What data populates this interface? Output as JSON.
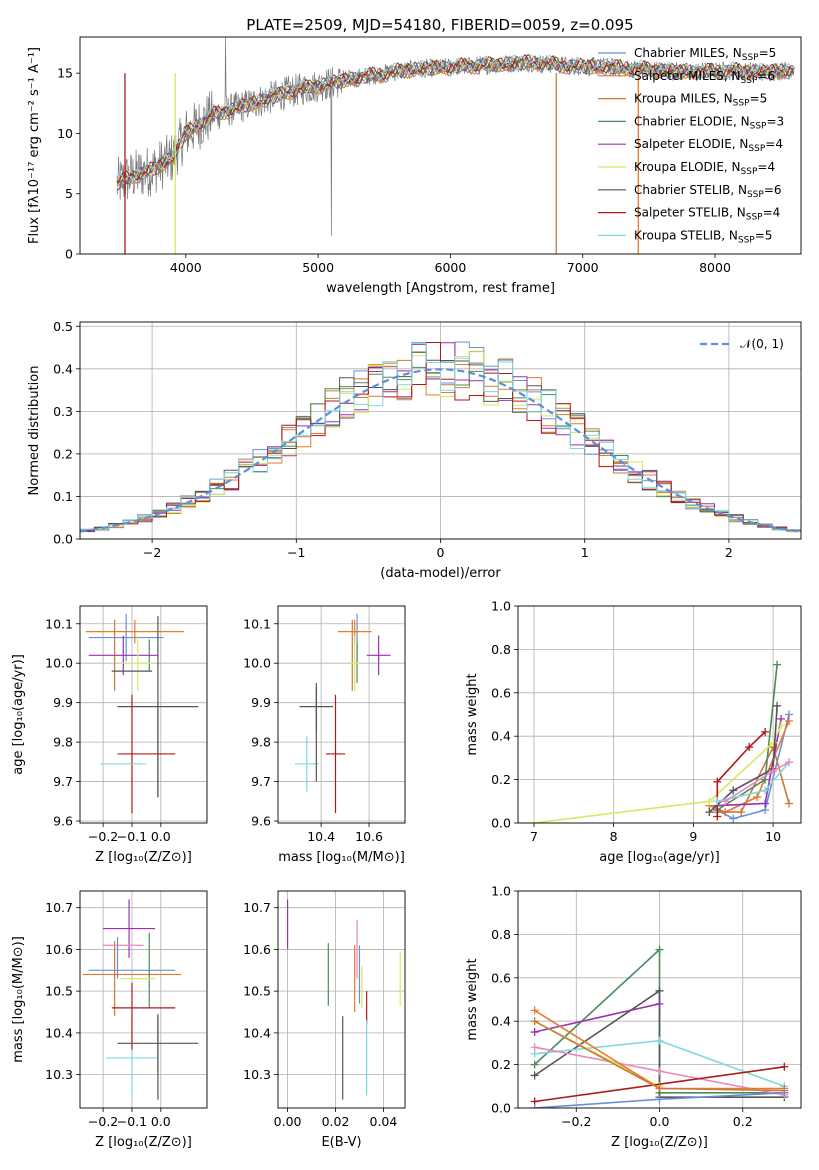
{
  "figure": {
    "title": "PLATE=2509, MJD=54180, FIBERID=0059, z=0.095"
  },
  "colors": {
    "Chabrier MILES": "#6a8fd8",
    "Salpeter MILES": "#e87a2a",
    "Kroupa MILES": "#c97a3a",
    "Chabrier ELODIE": "#4e8a5a",
    "Salpeter ELODIE": "#9b30b0",
    "Kroupa ELODIE": "#d8e860",
    "Chabrier STELIB": "#555555",
    "Salpeter STELIB": "#b01818",
    "Kroupa STELIB": "#80d8e0",
    "kroupa_elodie_line": "#c8dc50",
    "pink": "#e888c0",
    "data": "#777777"
  },
  "chart_data": [
    {
      "id": "spectrum",
      "type": "line",
      "xlabel": "wavelength [Angstrom, rest frame]",
      "ylabel": "Flux [fλ10⁻¹⁷ erg cm⁻² s⁻¹ A⁻¹]",
      "xlim": [
        3200,
        8650
      ],
      "ylim": [
        0,
        18
      ],
      "xticks": [
        "4000",
        "5000",
        "6000",
        "7000",
        "8000"
      ],
      "yticks": [
        "0",
        "5",
        "10",
        "15"
      ],
      "grid": false,
      "legend": "upper right",
      "continuum": {
        "x": [
          3480,
          3600,
          3750,
          3900,
          4000,
          4200,
          4500,
          4800,
          5100,
          5400,
          5700,
          6000,
          6300,
          6600,
          6900,
          7200,
          7500,
          7800,
          8100,
          8400,
          8600
        ],
        "y": [
          5.8,
          6.5,
          7.0,
          8.0,
          10.0,
          11.5,
          12.5,
          13.5,
          14.2,
          14.8,
          15.3,
          15.5,
          15.7,
          15.9,
          15.6,
          15.5,
          15.3,
          15.1,
          15.2,
          15.1,
          15.3
        ]
      },
      "series": [
        {
          "name": "Chabrier MILES",
          "label": "Chabrier MILES, N",
          "sub": "SSP",
          "n": "=5"
        },
        {
          "name": "Salpeter MILES",
          "label": "Salpeter MILES, N",
          "sub": "SSP",
          "n": "=6"
        },
        {
          "name": "Kroupa MILES",
          "label": "Kroupa MILES, N",
          "sub": "SSP",
          "n": "=5"
        },
        {
          "name": "Chabrier ELODIE",
          "label": "Chabrier ELODIE, N",
          "sub": "SSP",
          "n": "=3"
        },
        {
          "name": "Salpeter ELODIE",
          "label": "Salpeter ELODIE, N",
          "sub": "SSP",
          "n": "=4"
        },
        {
          "name": "Kroupa ELODIE",
          "label": "Kroupa ELODIE, N",
          "sub": "SSP",
          "n": "=4"
        },
        {
          "name": "Chabrier STELIB",
          "label": "Chabrier STELIB, N",
          "sub": "SSP",
          "n": "=6"
        },
        {
          "name": "Salpeter STELIB",
          "label": "Salpeter STELIB, N",
          "sub": "SSP",
          "n": "=4"
        },
        {
          "name": "Kroupa STELIB",
          "label": "Kroupa STELIB, N",
          "sub": "SSP",
          "n": "=5"
        }
      ],
      "drop_lines": [
        {
          "x": 3540,
          "series": "Salpeter STELIB"
        },
        {
          "x": 3920,
          "series": "Kroupa ELODIE"
        },
        {
          "x": 6800,
          "series": "Kroupa MILES"
        },
        {
          "x": 7420,
          "series": "Salpeter MILES"
        }
      ]
    },
    {
      "id": "residuals",
      "type": "histogram",
      "xlabel": "(data-model)/error",
      "ylabel": "Normed distribution",
      "xlim": [
        -2.5,
        2.5
      ],
      "ylim": [
        0,
        0.51
      ],
      "xticks": [
        -2,
        -1,
        0,
        1,
        2
      ],
      "yticks": [
        0.0,
        0.1,
        0.2,
        0.3,
        0.4,
        0.5
      ],
      "grid": true,
      "legend": "upper right",
      "gaussian_label": "𝒩(0, 1)",
      "bin_width": 0.1,
      "bin_start": -2.5
    },
    {
      "id": "Z-age",
      "type": "errorbar",
      "xlabel": "Z [log₁₀(Z/Z⊙)]",
      "ylabel": "age  [log₁₀(age/yr)]",
      "xlim": [
        -0.28,
        0.16
      ],
      "ylim": [
        9.595,
        10.145
      ],
      "xticks": [
        "-0.2",
        "-0.1",
        "0.0"
      ],
      "yticks": [
        "9.6",
        "9.7",
        "9.8",
        "9.9",
        "10.0",
        "10.1"
      ],
      "grid": true,
      "points": [
        {
          "series": "Chabrier MILES",
          "x": -0.12,
          "xerr": 0.13,
          "y": 10.065,
          "yerr": 0.06
        },
        {
          "series": "Salpeter MILES",
          "x": -0.09,
          "xerr": 0.17,
          "y": 10.08,
          "yerr": 0.03
        },
        {
          "series": "Kroupa MILES",
          "x": -0.16,
          "xerr": 0.0,
          "y": 10.02,
          "yerr": 0.09
        },
        {
          "series": "Chabrier ELODIE",
          "x": -0.04,
          "xerr": 0.0,
          "y": 10.02,
          "yerr": 0.04
        },
        {
          "series": "Salpeter ELODIE",
          "x": -0.13,
          "xerr": 0.12,
          "y": 10.02,
          "yerr": 0.05
        },
        {
          "series": "Kroupa ELODIE",
          "x": -0.08,
          "xerr": 0.06,
          "y": 10.0,
          "yerr": 0.07
        },
        {
          "series": "Chabrier STELIB",
          "x": -0.01,
          "xerr": 0.14,
          "y": 9.89,
          "yerr": 0.23
        },
        {
          "series": "Salpeter STELIB",
          "x": -0.1,
          "xerr": 0.0,
          "y": 9.77,
          "yerr": 0.15
        },
        {
          "series": "Kroupa STELIB",
          "x": -0.09,
          "xerr": 0.0,
          "y": 9.745,
          "yerr": 0.0
        },
        {
          "series": "Chabrier STELIB",
          "x": -0.1,
          "xerr": 0.07,
          "y": 9.98,
          "yerr": 0.0
        },
        {
          "series": "Salpeter STELIB",
          "x": -0.05,
          "xerr": 0.1,
          "y": 9.77,
          "yerr": 0.0
        },
        {
          "series": "Kroupa STELIB",
          "x": -0.13,
          "xerr": 0.08,
          "y": 9.745,
          "yerr": 0.0
        },
        {
          "series": "Chabrier STELIB",
          "x": -0.01,
          "xerr": 0.0,
          "y": 9.78,
          "yerr": 0.12
        }
      ]
    },
    {
      "id": "mass-age",
      "type": "errorbar",
      "xlabel": "mass [log₁₀(M/M⊙)]",
      "ylabel": "",
      "xlim": [
        10.22,
        10.75
      ],
      "ylim": [
        9.595,
        10.145
      ],
      "xticks": [
        "10.4",
        "10.6"
      ],
      "yticks": [
        "9.6",
        "9.7",
        "9.8",
        "9.9",
        "10.0",
        "10.1"
      ],
      "grid": true,
      "points": [
        {
          "series": "Chabrier MILES",
          "x": 10.55,
          "xerr": 0.0,
          "y": 10.065,
          "yerr": 0.06
        },
        {
          "series": "Salpeter MILES",
          "x": 10.54,
          "xerr": 0.07,
          "y": 10.08,
          "yerr": 0.03
        },
        {
          "series": "Kroupa MILES",
          "x": 10.53,
          "xerr": 0.0,
          "y": 10.02,
          "yerr": 0.09
        },
        {
          "series": "Chabrier ELODIE",
          "x": 10.55,
          "xerr": 0.0,
          "y": 10.0,
          "yerr": 0.05
        },
        {
          "series": "Salpeter ELODIE",
          "x": 10.64,
          "xerr": 0.05,
          "y": 10.02,
          "yerr": 0.05
        },
        {
          "series": "Kroupa ELODIE",
          "x": 10.54,
          "xerr": 0.02,
          "y": 10.0,
          "yerr": 0.07
        },
        {
          "series": "Chabrier STELIB",
          "x": 10.38,
          "xerr": 0.07,
          "y": 9.89,
          "yerr": 0.06
        },
        {
          "series": "Salpeter STELIB",
          "x": 10.46,
          "xerr": 0.04,
          "y": 9.77,
          "yerr": 0.15
        },
        {
          "series": "Kroupa STELIB",
          "x": 10.34,
          "xerr": 0.05,
          "y": 9.745,
          "yerr": 0.07
        },
        {
          "series": "Chabrier STELIB",
          "x": 10.38,
          "xerr": 0.0,
          "y": 9.82,
          "yerr": 0.12
        }
      ]
    },
    {
      "id": "age-weight",
      "type": "line",
      "xlabel": "age  [log₁₀(age/yr)]",
      "ylabel": "mass weight",
      "xlim": [
        6.8,
        10.35
      ],
      "ylim": [
        0,
        1.0
      ],
      "xticks": [
        "7",
        "8",
        "9",
        "10"
      ],
      "yticks": [
        "0.0",
        "0.2",
        "0.4",
        "0.6",
        "0.8",
        "1.0"
      ],
      "grid": true,
      "series": [
        {
          "name": "Chabrier MILES",
          "x": [
            9.3,
            9.5,
            9.9,
            10.2
          ],
          "y": [
            0.06,
            0.02,
            0.06,
            0.5
          ]
        },
        {
          "name": "Salpeter MILES",
          "x": [
            9.2,
            9.4,
            9.8,
            10.2
          ],
          "y": [
            0.08,
            0.05,
            0.12,
            0.47
          ]
        },
        {
          "name": "Kroupa MILES",
          "x": [
            9.3,
            9.6,
            10.0,
            10.2
          ],
          "y": [
            0.05,
            0.05,
            0.35,
            0.09
          ]
        },
        {
          "name": "Chabrier ELODIE",
          "x": [
            9.3,
            9.9,
            10.05
          ],
          "y": [
            0.06,
            0.2,
            0.73
          ]
        },
        {
          "name": "Salpeter ELODIE",
          "x": [
            9.3,
            9.9,
            10.1
          ],
          "y": [
            0.08,
            0.09,
            0.48
          ]
        },
        {
          "name": "Kroupa ELODIE",
          "x": [
            7.0,
            9.2,
            10.0,
            10.1
          ],
          "y": [
            0.0,
            0.1,
            0.37,
            0.45
          ]
        },
        {
          "name": "Chabrier STELIB",
          "x": [
            9.2,
            9.5,
            10.0,
            10.05
          ],
          "y": [
            0.05,
            0.15,
            0.25,
            0.54
          ]
        },
        {
          "name": "Salpeter STELIB",
          "x": [
            9.3,
            9.3,
            9.7,
            9.9
          ],
          "y": [
            0.03,
            0.19,
            0.35,
            0.42
          ]
        },
        {
          "name": "Kroupa STELIB",
          "x": [
            9.3,
            9.9,
            10.2
          ],
          "y": [
            0.1,
            0.15,
            0.28
          ]
        },
        {
          "name": "pink",
          "x": [
            9.4,
            10.0,
            10.2
          ],
          "y": [
            0.1,
            0.24,
            0.28
          ]
        }
      ]
    },
    {
      "id": "Z-mass",
      "type": "errorbar",
      "xlabel": "Z [log₁₀(Z/Z⊙)]",
      "ylabel": "mass [log₁₀(M/M⊙)]",
      "xlim": [
        -0.28,
        0.16
      ],
      "ylim": [
        10.22,
        10.74
      ],
      "xticks": [
        "-0.2",
        "-0.1",
        "0.0"
      ],
      "yticks": [
        "10.3",
        "10.4",
        "10.5",
        "10.6",
        "10.7"
      ],
      "grid": true,
      "points": [
        {
          "series": "Chabrier MILES",
          "x": -0.1,
          "xerr": 0.15,
          "y": 10.55,
          "yerr": 0.0
        },
        {
          "series": "Salpeter MILES",
          "x": -0.1,
          "xerr": 0.17,
          "y": 10.54,
          "yerr": 0.0
        },
        {
          "series": "Kroupa MILES",
          "x": -0.16,
          "xerr": 0.0,
          "y": 10.53,
          "yerr": 0.09
        },
        {
          "series": "Chabrier ELODIE",
          "x": -0.04,
          "xerr": 0.0,
          "y": 10.55,
          "yerr": 0.09
        },
        {
          "series": "Salpeter ELODIE",
          "x": -0.11,
          "xerr": 0.09,
          "y": 10.65,
          "yerr": 0.07
        },
        {
          "series": "Kroupa ELODIE",
          "x": -0.08,
          "xerr": 0.06,
          "y": 10.53,
          "yerr": 0.0
        },
        {
          "series": "Chabrier STELIB",
          "x": -0.01,
          "xerr": 0.14,
          "y": 10.375,
          "yerr": 0.07
        },
        {
          "series": "Salpeter STELIB",
          "x": -0.06,
          "xerr": 0.11,
          "y": 10.46,
          "yerr": 0.0
        },
        {
          "series": "Kroupa STELIB",
          "x": -0.1,
          "xerr": 0.09,
          "y": 10.34,
          "yerr": 0.09
        },
        {
          "series": "pink",
          "x": -0.13,
          "xerr": 0.07,
          "y": 10.61,
          "yerr": 0.0
        },
        {
          "series": "Chabrier MILES",
          "x": -0.15,
          "xerr": 0.0,
          "y": 10.58,
          "yerr": 0.05
        },
        {
          "series": "Salpeter STELIB",
          "x": -0.1,
          "xerr": 0.0,
          "y": 10.44,
          "yerr": 0.08
        },
        {
          "series": "Chabrier STELIB",
          "x": -0.01,
          "xerr": 0.0,
          "y": 10.34,
          "yerr": 0.1
        }
      ]
    },
    {
      "id": "ebv-mass",
      "type": "errorbar",
      "xlabel": "E(B-V)",
      "ylabel": "",
      "xlim": [
        -0.004,
        0.049
      ],
      "ylim": [
        10.22,
        10.74
      ],
      "xticks": [
        "0.00",
        "0.02",
        "0.04"
      ],
      "yticks": [
        "10.3",
        "10.4",
        "10.5",
        "10.6",
        "10.7"
      ],
      "grid": true,
      "points": [
        {
          "series": "Salpeter ELODIE",
          "x": 0.0,
          "xerr": 0.0,
          "y": 10.66,
          "yerr": 0.06
        },
        {
          "series": "Chabrier ELODIE",
          "x": 0.017,
          "xerr": 0.0,
          "y": 10.54,
          "yerr": 0.075
        },
        {
          "series": "Chabrier STELIB",
          "x": 0.023,
          "xerr": 0.0,
          "y": 10.34,
          "yerr": 0.1
        },
        {
          "series": "Salpeter MILES",
          "x": 0.028,
          "xerr": 0.0,
          "y": 10.53,
          "yerr": 0.08
        },
        {
          "series": "Chabrier MILES",
          "x": 0.03,
          "xerr": 0.0,
          "y": 10.54,
          "yerr": 0.07
        },
        {
          "series": "pink",
          "x": 0.029,
          "xerr": 0.0,
          "y": 10.6,
          "yerr": 0.07
        },
        {
          "series": "Kroupa ELODIE",
          "x": 0.031,
          "xerr": 0.0,
          "y": 10.51,
          "yerr": 0.05
        },
        {
          "series": "Salpeter STELIB",
          "x": 0.033,
          "xerr": 0.0,
          "y": 10.46,
          "yerr": 0.04
        },
        {
          "series": "Kroupa STELIB",
          "x": 0.033,
          "xerr": 0.0,
          "y": 10.34,
          "yerr": 0.09
        },
        {
          "series": "Kroupa ELODIE",
          "x": 0.047,
          "xerr": 0.0,
          "y": 10.53,
          "yerr": 0.065
        }
      ]
    },
    {
      "id": "Z-weight",
      "type": "line",
      "xlabel": "Z [log₁₀(Z/Z⊙)]",
      "ylabel": "mass weight",
      "xlim": [
        -0.34,
        0.34
      ],
      "ylim": [
        0,
        1.0
      ],
      "xticks": [
        "-0.2",
        "0.0",
        "0.2"
      ],
      "yticks": [
        "0.0",
        "0.2",
        "0.4",
        "0.6",
        "0.8",
        "1.0"
      ],
      "grid": true,
      "series": [
        {
          "name": "Chabrier ELODIE",
          "x": [
            -0.3,
            0.0,
            0.0,
            0.3
          ],
          "y": [
            0.2,
            0.73,
            0.07,
            0.07
          ]
        },
        {
          "name": "Chabrier STELIB",
          "x": [
            -0.3,
            0.0,
            0.0,
            0.3
          ],
          "y": [
            0.15,
            0.54,
            0.05,
            0.05
          ]
        },
        {
          "name": "Salpeter ELODIE",
          "x": [
            -0.3,
            0.0
          ],
          "y": [
            0.35,
            0.48
          ]
        },
        {
          "name": "Kroupa STELIB",
          "x": [
            -0.3,
            0.0,
            0.3
          ],
          "y": [
            0.25,
            0.31,
            0.1
          ]
        },
        {
          "name": "pink",
          "x": [
            -0.3,
            0.0,
            0.3
          ],
          "y": [
            0.28,
            0.17,
            0.06
          ]
        },
        {
          "name": "Kroupa ELODIE",
          "x": [
            -0.3,
            0.0
          ],
          "y": [
            0.4,
            0.1
          ]
        },
        {
          "name": "Salpeter STELIB",
          "x": [
            -0.3,
            0.3
          ],
          "y": [
            0.03,
            0.19
          ]
        },
        {
          "name": "Salpeter MILES",
          "x": [
            -0.3,
            0.0,
            0.3
          ],
          "y": [
            0.45,
            0.09,
            0.09
          ]
        },
        {
          "name": "Kroupa MILES",
          "x": [
            -0.3,
            0.0,
            0.3
          ],
          "y": [
            0.4,
            0.09,
            0.08
          ]
        },
        {
          "name": "Chabrier MILES",
          "x": [
            -0.3,
            0.0,
            0.3
          ],
          "y": [
            0.0,
            0.04,
            0.07
          ]
        }
      ]
    }
  ]
}
